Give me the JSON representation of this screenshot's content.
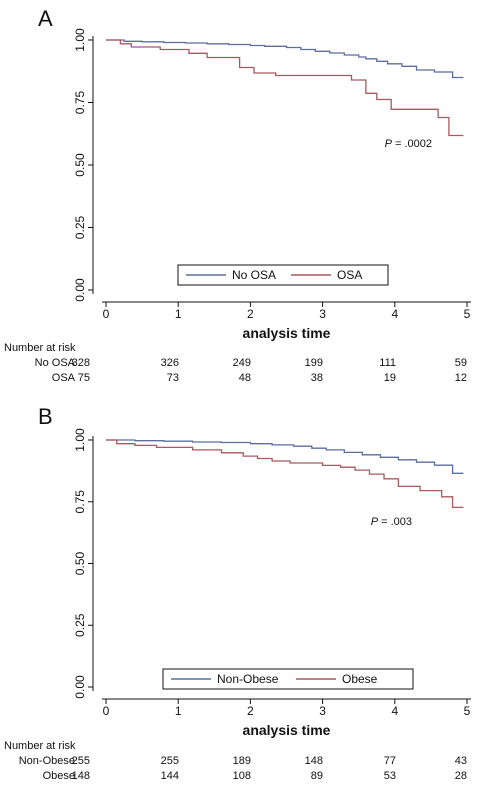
{
  "chart_data": [
    {
      "type": "line",
      "panel_label": "A",
      "xlabel": "analysis time",
      "ylabel": "",
      "xlim": [
        0,
        5
      ],
      "ylim": [
        0,
        1
      ],
      "x_ticks": [
        "0",
        "1",
        "2",
        "3",
        "4",
        "5"
      ],
      "y_ticks": [
        "0.00",
        "0.25",
        "0.50",
        "0.75",
        "1.00"
      ],
      "annotation": {
        "italic": "P",
        "rest": " = .0002"
      },
      "legend_position": "bottom-center",
      "series": [
        {
          "name": "No OSA",
          "color": "#5b6f9e",
          "x": [
            0,
            0.25,
            0.5,
            0.8,
            1.1,
            1.4,
            1.7,
            2.0,
            2.2,
            2.5,
            2.7,
            2.9,
            3.1,
            3.3,
            3.5,
            3.6,
            3.75,
            3.9,
            4.1,
            4.3,
            4.55,
            4.8,
            4.95
          ],
          "y": [
            1.0,
            0.995,
            0.993,
            0.99,
            0.988,
            0.985,
            0.982,
            0.978,
            0.975,
            0.97,
            0.962,
            0.955,
            0.948,
            0.94,
            0.932,
            0.925,
            0.915,
            0.905,
            0.895,
            0.88,
            0.872,
            0.85,
            0.85
          ]
        },
        {
          "name": "OSA",
          "color": "#a8585f",
          "x": [
            0,
            0.2,
            0.35,
            0.75,
            1.15,
            1.4,
            1.85,
            2.05,
            2.35,
            3.4,
            3.6,
            3.75,
            3.95,
            4.6,
            4.75,
            4.95
          ],
          "y": [
            1.0,
            0.985,
            0.972,
            0.962,
            0.947,
            0.93,
            0.89,
            0.868,
            0.858,
            0.84,
            0.787,
            0.762,
            0.723,
            0.69,
            0.618,
            0.618
          ]
        }
      ],
      "risk_table": {
        "title": "Number at risk",
        "rows": [
          {
            "label": "No OSA",
            "values": [
              "328",
              "326",
              "249",
              "199",
              "111",
              "59"
            ]
          },
          {
            "label": "OSA",
            "values": [
              "75",
              "73",
              "48",
              "38",
              "19",
              "12"
            ]
          }
        ]
      }
    },
    {
      "type": "line",
      "panel_label": "B",
      "xlabel": "analysis time",
      "ylabel": "",
      "xlim": [
        0,
        5
      ],
      "ylim": [
        0,
        1
      ],
      "x_ticks": [
        "0",
        "1",
        "2",
        "3",
        "4",
        "5"
      ],
      "y_ticks": [
        "0.00",
        "0.25",
        "0.50",
        "0.75",
        "1.00"
      ],
      "annotation": {
        "italic": "P",
        "rest": " = .003"
      },
      "legend_position": "bottom-center",
      "series": [
        {
          "name": "Non-Obese",
          "color": "#5b6f9e",
          "x": [
            0,
            0.4,
            0.8,
            1.2,
            1.6,
            2.0,
            2.3,
            2.6,
            2.85,
            3.05,
            3.3,
            3.55,
            3.8,
            4.05,
            4.3,
            4.55,
            4.8,
            4.95
          ],
          "y": [
            1.0,
            0.997,
            0.995,
            0.992,
            0.99,
            0.985,
            0.98,
            0.975,
            0.967,
            0.96,
            0.95,
            0.94,
            0.93,
            0.92,
            0.91,
            0.898,
            0.865,
            0.865
          ]
        },
        {
          "name": "Obese",
          "color": "#a8585f",
          "x": [
            0,
            0.15,
            0.4,
            0.7,
            1.2,
            1.6,
            1.9,
            2.1,
            2.3,
            2.55,
            3.0,
            3.25,
            3.45,
            3.65,
            3.85,
            4.05,
            4.35,
            4.65,
            4.8,
            4.95
          ],
          "y": [
            1.0,
            0.985,
            0.978,
            0.97,
            0.96,
            0.948,
            0.935,
            0.925,
            0.915,
            0.907,
            0.897,
            0.89,
            0.878,
            0.862,
            0.843,
            0.812,
            0.795,
            0.77,
            0.727,
            0.727
          ]
        }
      ],
      "risk_table": {
        "title": "Number at risk",
        "rows": [
          {
            "label": "Non-Obese",
            "values": [
              "255",
              "255",
              "189",
              "148",
              "77",
              "43"
            ]
          },
          {
            "label": "Obese",
            "values": [
              "148",
              "144",
              "108",
              "89",
              "53",
              "28"
            ]
          }
        ]
      }
    }
  ]
}
